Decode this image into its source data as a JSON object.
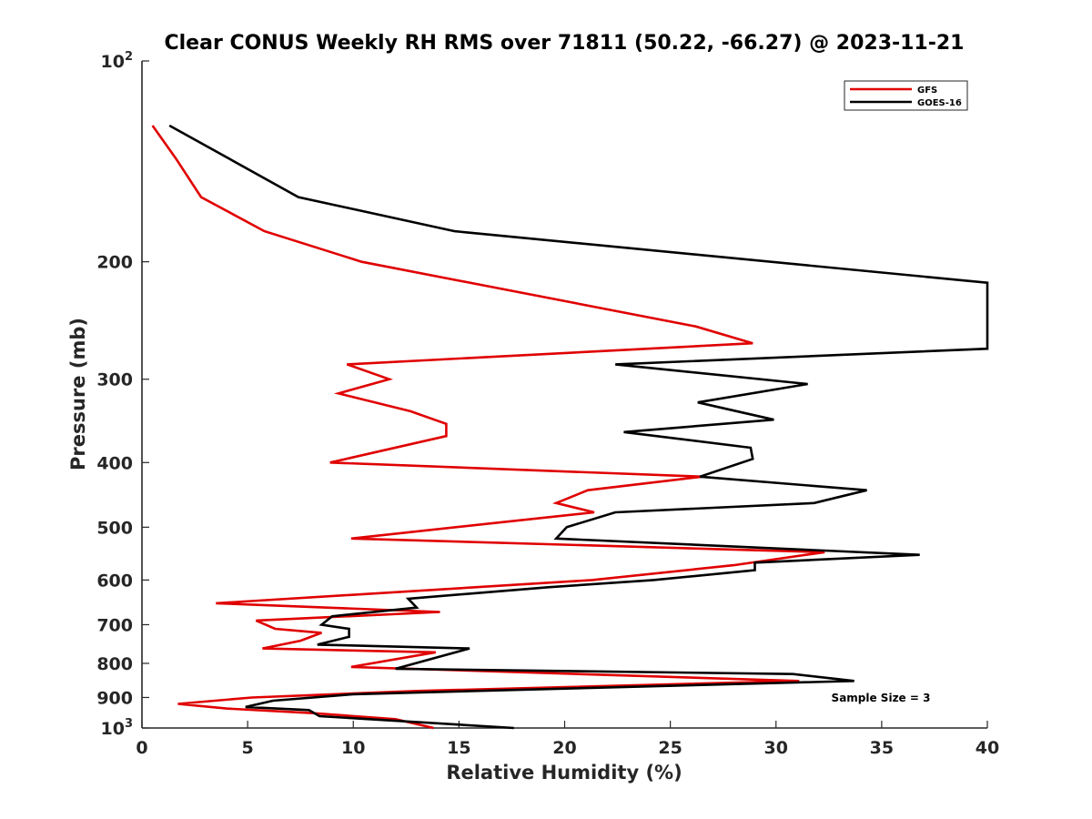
{
  "chart_data": {
    "type": "line",
    "title": "Clear CONUS Weekly RH RMS over 71811 (50.22, -66.27) @ 2023-11-21",
    "xlabel": "Relative Humidity (%)",
    "ylabel": "Pressure (mb)",
    "xlim": [
      0,
      40
    ],
    "ylim": [
      100,
      1000
    ],
    "yscale": "log",
    "y_reversed": true,
    "grid": false,
    "xticks": [
      "0",
      "5",
      "10",
      "15",
      "20",
      "25",
      "30",
      "35",
      "40"
    ],
    "yticks": [
      {
        "value": 100,
        "base": "10",
        "exp": "2",
        "label": ""
      },
      {
        "value": 200,
        "label": "200"
      },
      {
        "value": 300,
        "label": "300"
      },
      {
        "value": 400,
        "label": "400"
      },
      {
        "value": 500,
        "label": "500"
      },
      {
        "value": 600,
        "label": "600"
      },
      {
        "value": 700,
        "label": "700"
      },
      {
        "value": 800,
        "label": "800"
      },
      {
        "value": 900,
        "label": "900"
      },
      {
        "value": 1000,
        "base": "10",
        "exp": "3",
        "label": ""
      }
    ],
    "legend_position": "top-right",
    "annotation": "Sample Size = 3",
    "series": [
      {
        "name": "GFS",
        "color": "#e00000",
        "points": [
          [
            0.5,
            125
          ],
          [
            1.6,
            140
          ],
          [
            2.8,
            160
          ],
          [
            5.8,
            180
          ],
          [
            10.4,
            200
          ],
          [
            26.2,
            250
          ],
          [
            28.9,
            265
          ],
          [
            9.7,
            285
          ],
          [
            11.7,
            300
          ],
          [
            9.3,
            315
          ],
          [
            12.7,
            335
          ],
          [
            14.4,
            350
          ],
          [
            14.4,
            365
          ],
          [
            8.9,
            400
          ],
          [
            26.5,
            420
          ],
          [
            21.1,
            440
          ],
          [
            19.6,
            460
          ],
          [
            21.4,
            475
          ],
          [
            17.4,
            490
          ],
          [
            9.9,
            520
          ],
          [
            32.3,
            545
          ],
          [
            28.0,
            570
          ],
          [
            21.3,
            600
          ],
          [
            3.5,
            650
          ],
          [
            14.1,
            670
          ],
          [
            5.4,
            690
          ],
          [
            6.3,
            710
          ],
          [
            8.5,
            720
          ],
          [
            7.5,
            740
          ],
          [
            5.7,
            760
          ],
          [
            13.9,
            770
          ],
          [
            9.9,
            810
          ],
          [
            31.1,
            850
          ],
          [
            13.0,
            880
          ],
          [
            5.2,
            900
          ],
          [
            1.7,
            920
          ],
          [
            4.0,
            935
          ],
          [
            8.1,
            950
          ],
          [
            12.0,
            970
          ],
          [
            13.8,
            1000
          ]
        ]
      },
      {
        "name": "GOES-16",
        "color": "#000000",
        "points": [
          [
            1.3,
            125
          ],
          [
            7.4,
            160
          ],
          [
            14.8,
            180
          ],
          [
            40.0,
            215
          ],
          [
            40.0,
            270
          ],
          [
            22.4,
            285
          ],
          [
            31.5,
            305
          ],
          [
            26.3,
            325
          ],
          [
            29.9,
            345
          ],
          [
            22.8,
            360
          ],
          [
            28.8,
            380
          ],
          [
            28.9,
            395
          ],
          [
            26.4,
            420
          ],
          [
            34.3,
            440
          ],
          [
            31.8,
            460
          ],
          [
            22.4,
            475
          ],
          [
            20.1,
            500
          ],
          [
            19.6,
            520
          ],
          [
            36.8,
            550
          ],
          [
            29.0,
            565
          ],
          [
            29.0,
            580
          ],
          [
            24.2,
            600
          ],
          [
            19.3,
            615
          ],
          [
            12.6,
            640
          ],
          [
            13.0,
            660
          ],
          [
            9.0,
            680
          ],
          [
            8.5,
            700
          ],
          [
            9.8,
            710
          ],
          [
            9.8,
            730
          ],
          [
            8.3,
            750
          ],
          [
            15.5,
            760
          ],
          [
            12.0,
            815
          ],
          [
            30.8,
            830
          ],
          [
            33.7,
            850
          ],
          [
            10.0,
            890
          ],
          [
            6.2,
            910
          ],
          [
            4.9,
            930
          ],
          [
            7.9,
            940
          ],
          [
            8.4,
            960
          ],
          [
            17.6,
            1000
          ]
        ]
      }
    ]
  }
}
